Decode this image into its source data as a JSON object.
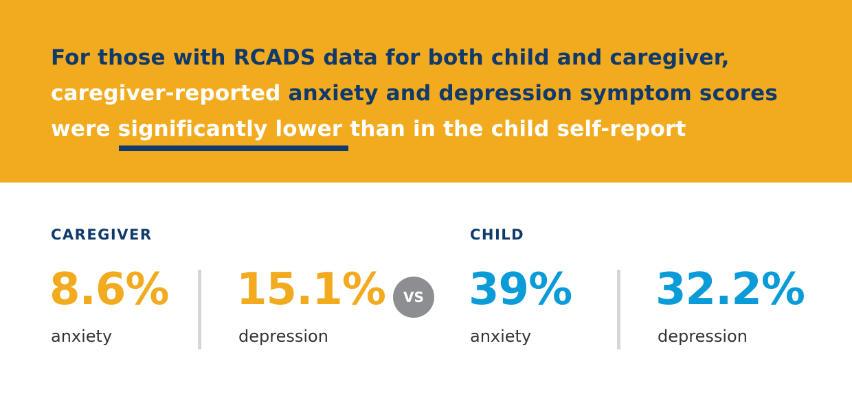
{
  "headline": {
    "line1": "For those with RCADS data for both child and caregiver,",
    "line2_white": "caregiver-reported",
    "line2_blue": " anxiety and depression symptom scores",
    "line3": "were significantly lower than in the child self-report"
  },
  "caregiver": {
    "label": "CAREGIVER",
    "anxiety_value": "8.6%",
    "anxiety_label": "anxiety",
    "depression_value": "15.1%",
    "depression_label": "depression"
  },
  "vs_label": "VS",
  "child": {
    "label": "CHILD",
    "anxiety_value": "39%",
    "anxiety_label": "anxiety",
    "depression_value": "32.2%",
    "depression_label": "depression"
  },
  "colors": {
    "banner": "#F2AA1F",
    "navy": "#0F3A6B",
    "caregiver": "#F2AA1F",
    "child": "#0A9BD8",
    "vs": "#8C8E91"
  }
}
